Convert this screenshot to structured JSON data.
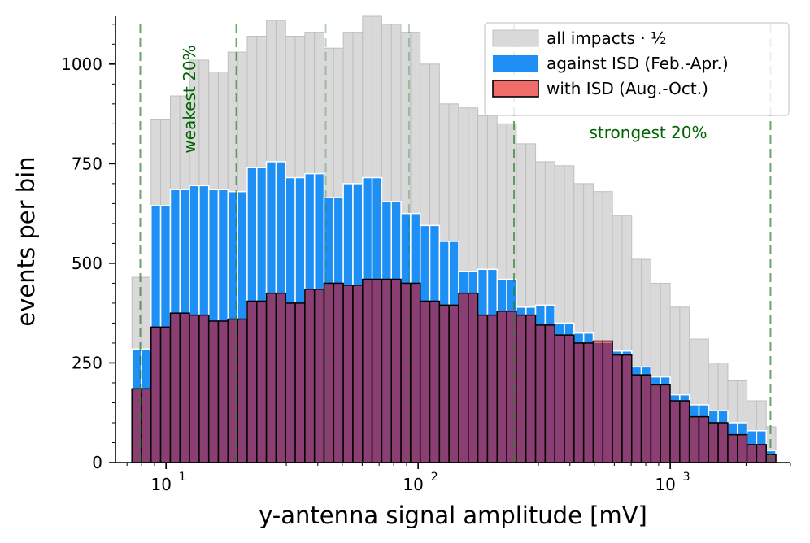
{
  "chart_data": {
    "type": "bar",
    "xlabel": "y-antenna signal amplitude [mV]",
    "ylabel": "events per bin",
    "xscale": "log",
    "xlim": [
      6.3,
      3000
    ],
    "ylim": [
      0,
      1120
    ],
    "x_tick_labels": [
      {
        "value": 10,
        "base": "10",
        "exp": "1"
      },
      {
        "value": 100,
        "base": "10",
        "exp": "2"
      },
      {
        "value": 1000,
        "base": "10",
        "exp": "3"
      }
    ],
    "y_ticks": [
      0,
      250,
      500,
      750,
      1000
    ],
    "y_tick_labels": [
      "0",
      "250",
      "500",
      "750",
      "1000"
    ],
    "bin_edges": [
      7.32,
      7.99,
      8.72,
      9.52,
      10.4,
      11.35,
      12.39,
      13.53,
      14.77,
      16.12,
      17.6,
      19.22,
      20.98,
      22.91,
      25.01,
      27.31,
      29.81,
      32.55,
      35.53,
      38.79,
      42.35,
      46.24,
      50.48,
      55.12,
      60.18,
      65.7,
      71.73,
      78.31,
      85.5,
      93.35,
      101.92,
      111.27,
      121.48,
      132.63,
      144.8,
      158.09,
      172.6,
      188.44,
      205.74,
      224.62,
      245.23,
      267.74,
      292.31,
      319.14,
      348.43,
      380.41,
      415.32,
      453.44,
      495.05,
      540.48,
      590.09,
      644.24,
      703.37,
      767.92,
      838.4,
      915.34,
      999.35,
      1091.07,
      1191.2,
      1300.52,
      1419.88,
      1550.19,
      1692.46,
      1847.79,
      2017.37,
      2202.52,
      2404.66,
      2625.35
    ],
    "series": [
      {
        "name": "all impacts · ½",
        "color": "#d9d9d9",
        "edge": "#bfbfbf",
        "values": [
          465,
          465,
          860,
          860,
          920,
          920,
          1010,
          1010,
          980,
          980,
          1030,
          1030,
          1070,
          1070,
          1110,
          1110,
          1070,
          1070,
          1080,
          1080,
          1040,
          1040,
          1080,
          1080,
          1120,
          1120,
          1100,
          1100,
          1080,
          1080,
          1000,
          1000,
          900,
          900,
          890,
          890,
          870,
          870,
          850,
          850,
          800,
          800,
          755,
          755,
          745,
          745,
          700,
          700,
          680,
          680,
          620,
          620,
          510,
          510,
          450,
          450,
          390,
          390,
          310,
          310,
          250,
          250,
          205,
          205,
          155,
          155,
          90,
          90
        ]
      },
      {
        "name": "against ISD (Feb.-Apr.)",
        "color": "#1e8ff5",
        "edge": "#ffffff",
        "values": [
          285,
          285,
          645,
          645,
          685,
          685,
          695,
          695,
          685,
          685,
          680,
          680,
          740,
          740,
          755,
          755,
          715,
          715,
          725,
          725,
          665,
          665,
          700,
          700,
          715,
          715,
          655,
          655,
          625,
          625,
          595,
          595,
          555,
          555,
          480,
          480,
          485,
          485,
          460,
          460,
          390,
          390,
          395,
          395,
          350,
          350,
          325,
          325,
          300,
          300,
          280,
          280,
          240,
          240,
          215,
          215,
          170,
          170,
          145,
          145,
          130,
          130,
          100,
          100,
          80,
          80,
          30,
          30
        ]
      },
      {
        "name": "with ISD (Aug.-Oct.)",
        "color": "#f26b6b",
        "edge": "#000000",
        "values": [
          185,
          185,
          340,
          340,
          375,
          375,
          370,
          370,
          355,
          355,
          360,
          360,
          405,
          405,
          425,
          425,
          400,
          400,
          435,
          435,
          450,
          450,
          445,
          445,
          460,
          460,
          460,
          460,
          450,
          450,
          405,
          405,
          395,
          395,
          425,
          425,
          370,
          370,
          380,
          380,
          370,
          370,
          345,
          345,
          320,
          320,
          300,
          300,
          305,
          305,
          270,
          270,
          220,
          220,
          195,
          195,
          155,
          155,
          115,
          115,
          100,
          100,
          70,
          70,
          45,
          45,
          20,
          20
        ]
      }
    ],
    "overlap_color": "#8b3e72",
    "vlines": [
      {
        "x": 7.9,
        "color": "#2e7d2e",
        "opacity": 0.7
      },
      {
        "x": 19.0,
        "color": "#2e7d2e",
        "opacity": 0.7
      },
      {
        "x": 43.0,
        "color": "#2e7d2e",
        "opacity": 0.35
      },
      {
        "x": 92.0,
        "color": "#2e7d2e",
        "opacity": 0.35
      },
      {
        "x": 240.0,
        "color": "#2e7d2e",
        "opacity": 0.7
      },
      {
        "x": 2500.0,
        "color": "#2e7d2e",
        "opacity": 0.7
      }
    ],
    "annotations": [
      {
        "text": "weakest 20%",
        "color": "#006400",
        "rotate": -90
      },
      {
        "text": "strongest 20%",
        "color": "#006400",
        "rotate": 0
      }
    ],
    "legend_position": "top-right"
  }
}
